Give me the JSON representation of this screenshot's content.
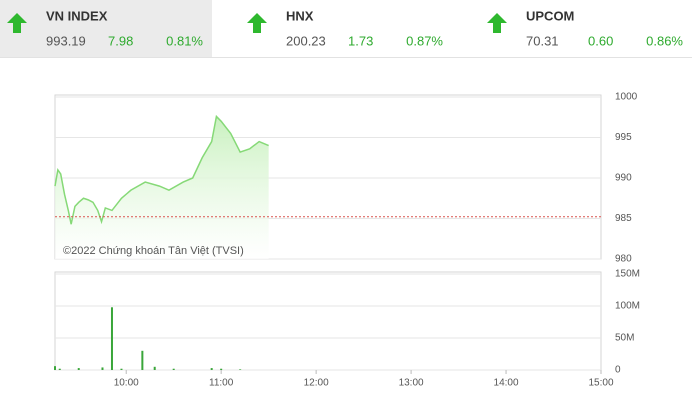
{
  "indices": [
    {
      "name": "VN INDEX",
      "value": "993.19",
      "change": "7.98",
      "percent": "0.81%"
    },
    {
      "name": "HNX",
      "value": "200.23",
      "change": "1.73",
      "percent": "0.87%"
    },
    {
      "name": "UPCOM",
      "value": "70.31",
      "change": "0.60",
      "percent": "0.86%"
    }
  ],
  "chart_data": [
    {
      "type": "area",
      "color": "#86d977",
      "fill": "#c9f1bf",
      "annotation": "©2022 Chứng khoán Tân Việt (TVSI)",
      "x": [
        9.25,
        9.28,
        9.31,
        9.35,
        9.39,
        9.42,
        9.46,
        9.5,
        9.55,
        9.6,
        9.65,
        9.7,
        9.74,
        9.78,
        9.85,
        9.95,
        10.05,
        10.2,
        10.35,
        10.45,
        10.6,
        10.7,
        10.8,
        10.9,
        10.95,
        11.0,
        11.1,
        11.2,
        11.3,
        11.4,
        11.5
      ],
      "values": [
        989,
        991,
        990.5,
        988,
        986,
        984.3,
        986.5,
        987,
        987.5,
        987.3,
        987,
        986,
        984.6,
        986.3,
        986,
        987.5,
        988.5,
        989.5,
        989,
        988.5,
        989.5,
        990,
        992.5,
        994.5,
        997.6,
        997,
        995.5,
        993.2,
        993.6,
        994.5,
        994
      ],
      "reference": 985.21,
      "reference_color": "#d9534f",
      "xlim": [
        9.25,
        15
      ],
      "ylim": [
        980,
        1000
      ],
      "yticks": [
        980,
        985,
        990,
        995,
        1000
      ],
      "grid": true
    },
    {
      "type": "bar",
      "color": "#3aa63a",
      "x": [
        9.25,
        9.3,
        9.5,
        9.75,
        9.85,
        9.95,
        10.17,
        10.3,
        10.5,
        10.9,
        11.0,
        11.2
      ],
      "values": [
        6,
        2,
        3,
        4,
        98,
        2,
        30,
        5,
        2,
        3,
        2,
        1
      ],
      "xlim": [
        9.25,
        15
      ],
      "xticks": [
        {
          "value": 10,
          "label": "10:00"
        },
        {
          "value": 11,
          "label": "11:00"
        },
        {
          "value": 12,
          "label": "12:00"
        },
        {
          "value": 13,
          "label": "13:00"
        },
        {
          "value": 14,
          "label": "14:00"
        },
        {
          "value": 15,
          "label": "15:00"
        }
      ],
      "ylim": [
        0,
        150
      ],
      "yticks": [
        0,
        {
          "value": 50,
          "label": "50M"
        },
        {
          "value": 100,
          "label": "100M"
        },
        {
          "value": 150,
          "label": "150M"
        }
      ],
      "grid": true
    }
  ]
}
